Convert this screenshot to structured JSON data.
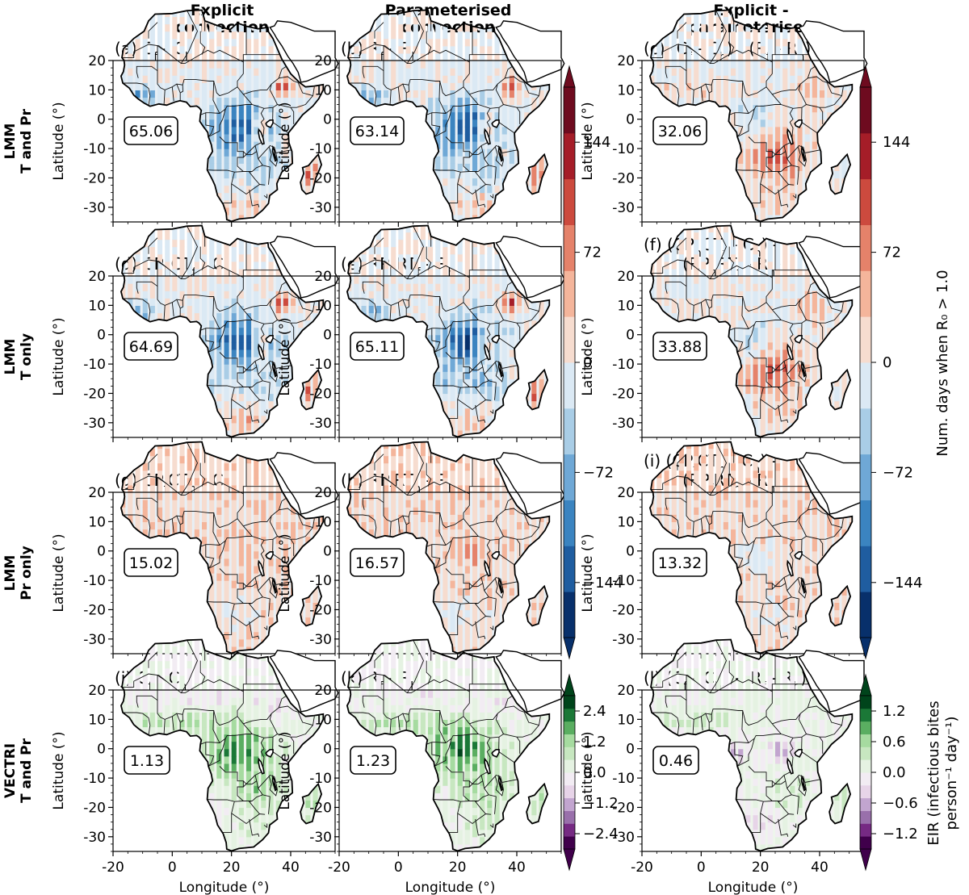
{
  "column_headers": [
    {
      "line1": "Explicit",
      "line2": "convection"
    },
    {
      "line1": "Parameterised",
      "line2": "convection"
    },
    {
      "line1": "Explicit -",
      "line2": "parameterised"
    }
  ],
  "row_headers": [
    {
      "line1": "LMM",
      "line2": "T and Pr"
    },
    {
      "line1": "LMM",
      "line2": "T only"
    },
    {
      "line1": "LMM",
      "line2": "Pr only"
    },
    {
      "line1": "VECTRI",
      "line2": "T and Pr"
    }
  ],
  "axes": {
    "ylabel": "Latitude (°)",
    "xlabel": "Longitude (°)",
    "yticks": [
      "20",
      "10",
      "0",
      "-10",
      "-20",
      "-30"
    ],
    "xticks": [
      "-20",
      "0",
      "20",
      "40"
    ]
  },
  "colorbars": [
    {
      "label": "Num. days when R₀ > 1.0",
      "ticks": [
        "144",
        "72",
        "0",
        "−72",
        "−144"
      ],
      "range": [
        -180,
        180
      ]
    },
    {
      "label_line1": "EIR (infectious bites",
      "label_line2": "person⁻¹ day⁻¹)",
      "ticks_left": [
        "2.4",
        "1.2",
        "0.0",
        "−1.2",
        "−2.4"
      ],
      "ticks_right": [
        "1.2",
        "0.6",
        "0.0",
        "−0.6",
        "−1.2"
      ]
    }
  ],
  "chart_data": [
    {
      "type": "heatmap",
      "panel": "(a)",
      "title_parts": [
        "(a) C",
        "f",
        " - C",
        "h",
        ""
      ],
      "stat": "65.06",
      "row": 0,
      "col": 0,
      "colormap": "RdBu_r",
      "xlim": [
        -20,
        55
      ],
      "ylim": [
        -35,
        20
      ]
    },
    {
      "type": "heatmap",
      "panel": "(b)",
      "title_parts": [
        "(b) R",
        "f",
        " - R",
        "h",
        ""
      ],
      "stat": "63.14",
      "row": 0,
      "col": 1,
      "colormap": "RdBu_r",
      "xlim": [
        -20,
        55
      ],
      "ylim": [
        -35,
        20
      ]
    },
    {
      "type": "heatmap",
      "panel": "(c)",
      "title_parts": [
        "(c) (C",
        "f",
        " - C",
        "h",
        ") - (R",
        "f",
        " - R",
        "h",
        ")"
      ],
      "stat": "32.06",
      "row": 0,
      "col": 2,
      "colormap": "RdBu_r",
      "xlim": [
        -20,
        55
      ],
      "ylim": [
        -35,
        20
      ]
    },
    {
      "type": "heatmap",
      "panel": "(d)",
      "title_parts": [
        "(d) CP",
        "h",
        "CT",
        "f",
        " - C",
        "h",
        ""
      ],
      "stat": "64.69",
      "row": 1,
      "col": 0,
      "colormap": "RdBu_r",
      "xlim": [
        -20,
        55
      ],
      "ylim": [
        -35,
        20
      ]
    },
    {
      "type": "heatmap",
      "panel": "(e)",
      "title_parts": [
        "(e) RP",
        "h",
        "RT",
        "f",
        " - R",
        "h",
        ""
      ],
      "stat": "65.11",
      "row": 1,
      "col": 1,
      "colormap": "RdBu_r",
      "xlim": [
        -20,
        55
      ],
      "ylim": [
        -35,
        20
      ]
    },
    {
      "type": "heatmap",
      "panel": "(f)",
      "title_parts": [
        "(f) (CP",
        "h",
        "CT",
        "f",
        " - C",
        "h",
        ") -"
      ],
      "title_line2_parts": [
        "(RP",
        "h",
        "RT",
        "f",
        " - R",
        "h",
        ")"
      ],
      "stat": "33.88",
      "row": 1,
      "col": 2,
      "colormap": "RdBu_r",
      "xlim": [
        -20,
        55
      ],
      "ylim": [
        -35,
        20
      ]
    },
    {
      "type": "heatmap",
      "panel": "(g)",
      "title_parts": [
        "(g) CP",
        "f",
        "CT",
        "h",
        " - C",
        "h",
        ""
      ],
      "stat": "15.02",
      "row": 2,
      "col": 0,
      "colormap": "RdBu_r",
      "xlim": [
        -20,
        55
      ],
      "ylim": [
        -35,
        20
      ]
    },
    {
      "type": "heatmap",
      "panel": "(h)",
      "title_parts": [
        "(h) RP",
        "f",
        "RT",
        "h",
        " - R",
        "h",
        ""
      ],
      "stat": "16.57",
      "row": 2,
      "col": 1,
      "colormap": "RdBu_r",
      "xlim": [
        -20,
        55
      ],
      "ylim": [
        -35,
        20
      ]
    },
    {
      "type": "heatmap",
      "panel": "(i)",
      "title_parts": [
        "(i) (CP",
        "f",
        "CT",
        "h",
        " - C",
        "h",
        ") -"
      ],
      "title_line2_parts": [
        "(RP",
        "f",
        "RT",
        "h",
        " - R",
        "h",
        ")"
      ],
      "stat": "13.32",
      "row": 2,
      "col": 2,
      "colormap": "RdBu_r",
      "xlim": [
        -20,
        55
      ],
      "ylim": [
        -35,
        20
      ]
    },
    {
      "type": "heatmap",
      "panel": "(j)",
      "title_parts": [
        "(j) C",
        "f",
        " - C",
        "h",
        ""
      ],
      "stat": "1.13",
      "row": 3,
      "col": 0,
      "colormap": "PRGn",
      "xlim": [
        -20,
        55
      ],
      "ylim": [
        -35,
        20
      ]
    },
    {
      "type": "heatmap",
      "panel": "(k)",
      "title_parts": [
        "(k) R",
        "f",
        " - R",
        "h",
        ""
      ],
      "stat": "1.23",
      "row": 3,
      "col": 1,
      "colormap": "PRGn",
      "xlim": [
        -20,
        55
      ],
      "ylim": [
        -35,
        20
      ]
    },
    {
      "type": "heatmap",
      "panel": "(l)",
      "title_parts": [
        "(l) (C",
        "f",
        " - C",
        "h",
        ") - (R",
        "f",
        " - R",
        "h",
        ")"
      ],
      "stat": "0.46",
      "row": 3,
      "col": 2,
      "colormap": "PRGn",
      "xlim": [
        -20,
        55
      ],
      "ylim": [
        -35,
        20
      ]
    }
  ],
  "colors": {
    "rdbu": [
      "#08306b",
      "#1f5da0",
      "#3b84c0",
      "#6fa8d6",
      "#a9cde6",
      "#dbe9f4",
      "#f6dccf",
      "#f4b59b",
      "#e5826a",
      "#cc4a3e",
      "#a51d28",
      "#6e0b1f"
    ],
    "prgn": [
      "#40004b",
      "#762a83",
      "#9970ab",
      "#c2a5cf",
      "#e7d4e8",
      "#f2ecf3",
      "#e5f2e2",
      "#c7e7c0",
      "#a6dba0",
      "#5aae61",
      "#1b7837",
      "#00441b"
    ],
    "land_base_rdbu": "#e8eff5",
    "land_base_prgn": "#eef5ec"
  }
}
